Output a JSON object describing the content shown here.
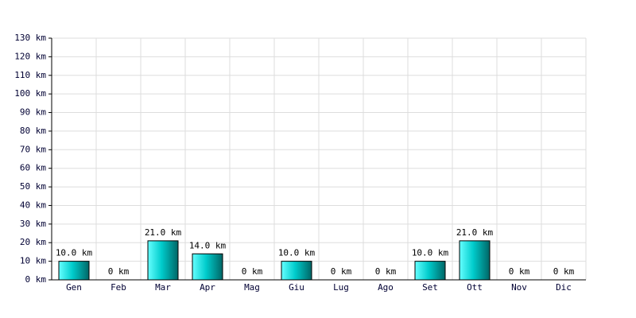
{
  "chart_data": {
    "type": "bar",
    "categories": [
      "Gen",
      "Feb",
      "Mar",
      "Apr",
      "Mag",
      "Giu",
      "Lug",
      "Ago",
      "Set",
      "Ott",
      "Nov",
      "Dic"
    ],
    "values": [
      10,
      0,
      21,
      14,
      0,
      10,
      0,
      0,
      10,
      21,
      0,
      0
    ],
    "value_labels": [
      "10.0 km",
      "0 km",
      "21.0 km",
      "14.0 km",
      "0 km",
      "10.0 km",
      "0 km",
      "0 km",
      "10.0 km",
      "21.0 km",
      "0 km",
      "0 km"
    ],
    "color": "#00cccc",
    "ylim": [
      0,
      130
    ],
    "yticks": [
      {
        "value": 0,
        "label": "0 km"
      },
      {
        "value": 10,
        "label": "10 km"
      },
      {
        "value": 20,
        "label": "20 km"
      },
      {
        "value": 30,
        "label": "30 km"
      },
      {
        "value": 40,
        "label": "40 km"
      },
      {
        "value": 50,
        "label": "50 km"
      },
      {
        "value": 60,
        "label": "60 km"
      },
      {
        "value": 70,
        "label": "70 km"
      },
      {
        "value": 80,
        "label": "80 km"
      },
      {
        "value": 90,
        "label": "90 km"
      },
      {
        "value": 100,
        "label": "100 km"
      },
      {
        "value": 110,
        "label": "110 km"
      },
      {
        "value": 120,
        "label": "120 km"
      },
      {
        "value": 130,
        "label": "130 km"
      }
    ],
    "grid": true
  }
}
